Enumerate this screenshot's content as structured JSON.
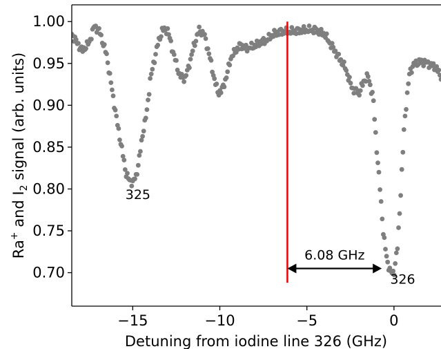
{
  "chart_data": {
    "type": "scatter",
    "xlabel": "Detuning from iodine line 326 (GHz)",
    "ylabel": {
      "prefix": "Ra",
      "sup": "+",
      "middle": " and I",
      "sub": "2",
      "suffix": " signal (arb. units)"
    },
    "xlim": [
      -18.5,
      2.7
    ],
    "ylim": [
      0.66,
      1.02
    ],
    "x_ticks": [
      {
        "value": -15,
        "label": "−15"
      },
      {
        "value": -10,
        "label": "−10"
      },
      {
        "value": -5,
        "label": "−5"
      },
      {
        "value": 0,
        "label": "0"
      }
    ],
    "y_ticks": [
      {
        "value": 0.7,
        "label": "0.70"
      },
      {
        "value": 0.75,
        "label": "0.75"
      },
      {
        "value": 0.8,
        "label": "0.80"
      },
      {
        "value": 0.85,
        "label": "0.85"
      },
      {
        "value": 0.9,
        "label": "0.90"
      },
      {
        "value": 0.95,
        "label": "0.95"
      },
      {
        "value": 1.0,
        "label": "1.00"
      }
    ],
    "grid": false,
    "marker_color": "#7f7f7f",
    "series_profile": {
      "x": [
        -18.5,
        -18.2,
        -17.9,
        -17.5,
        -17.2,
        -16.9,
        -16.5,
        -16.2,
        -15.9,
        -15.6,
        -15.4,
        -15.2,
        -15.0,
        -14.8,
        -14.6,
        -14.4,
        -14.2,
        -14.0,
        -13.6,
        -13.3,
        -13.0,
        -12.7,
        -12.3,
        -12.0,
        -11.8,
        -11.5,
        -11.2,
        -10.9,
        -10.6,
        -10.3,
        -10.1,
        -9.9,
        -9.6,
        -9.4,
        -9.1,
        -8.8,
        -8.5,
        -8.1,
        -7.7,
        -7.3,
        -6.9,
        -6.5,
        -6.0,
        -5.0,
        -4.5,
        -4.0,
        -3.4,
        -2.8,
        -2.4,
        -2.0,
        -1.7,
        -1.5,
        -1.2,
        -1.0,
        -0.8,
        -0.6,
        -0.4,
        -0.2,
        0.0,
        0.2,
        0.4,
        0.6,
        0.9,
        1.2,
        1.6,
        2.0,
        2.4,
        2.7
      ],
      "y": [
        0.985,
        0.975,
        0.965,
        0.975,
        0.995,
        0.988,
        0.96,
        0.92,
        0.88,
        0.845,
        0.82,
        0.81,
        0.808,
        0.815,
        0.84,
        0.87,
        0.89,
        0.93,
        0.97,
        0.99,
        0.99,
        0.965,
        0.935,
        0.932,
        0.945,
        0.97,
        0.99,
        0.985,
        0.96,
        0.93,
        0.915,
        0.917,
        0.935,
        0.955,
        0.965,
        0.972,
        0.968,
        0.97,
        0.975,
        0.978,
        0.985,
        0.988,
        0.988,
        0.99,
        0.99,
        0.985,
        0.965,
        0.945,
        0.92,
        0.915,
        0.93,
        0.935,
        0.91,
        0.85,
        0.8,
        0.745,
        0.715,
        0.7,
        0.7,
        0.73,
        0.8,
        0.88,
        0.94,
        0.95,
        0.952,
        0.95,
        0.945,
        0.935
      ],
      "n_points": 340
    },
    "vertical_marker": {
      "x": -6.12,
      "y_range": [
        0.688,
        1.0
      ],
      "color": "#ff0000"
    },
    "arrow": {
      "x_start": -6.12,
      "x_end": -0.7,
      "y": 0.705,
      "label": "6.08 GHz"
    },
    "annotations": [
      {
        "text": "325",
        "x": -14.7,
        "y": 0.788
      },
      {
        "text": "326",
        "x": 0.5,
        "y": 0.687
      }
    ]
  }
}
